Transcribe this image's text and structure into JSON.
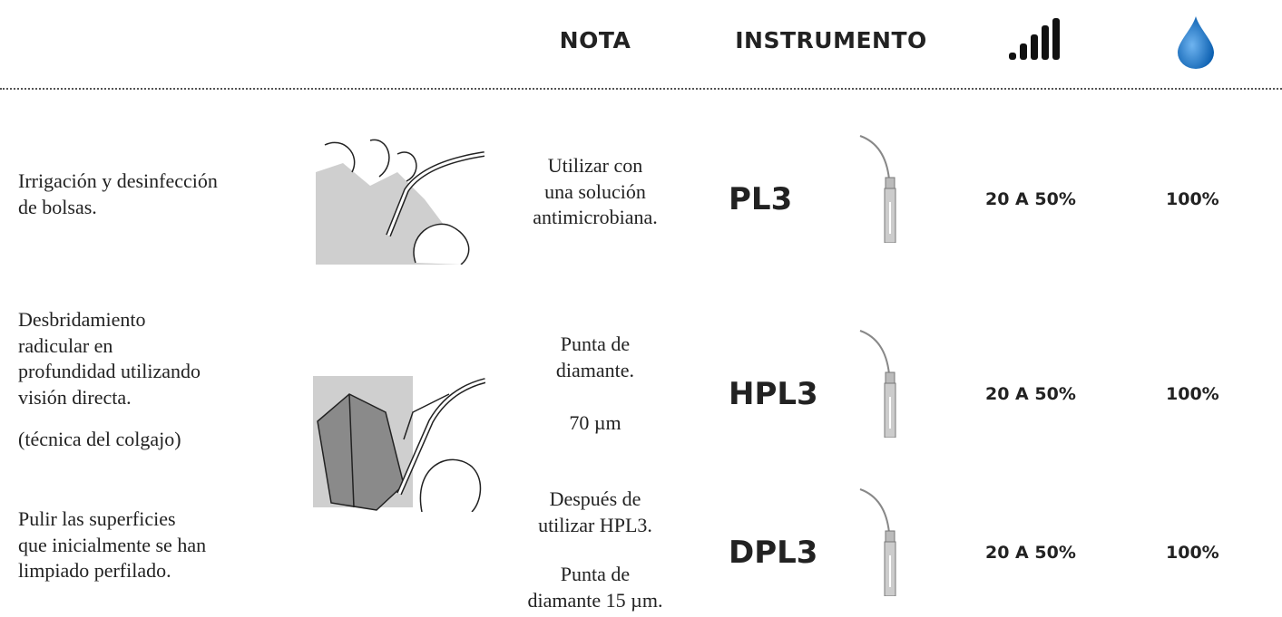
{
  "header": {
    "columns": [
      "NOTA",
      "INSTRUMENTO"
    ]
  },
  "rows": [
    {
      "description": [
        [
          "Irrigación y desinfección",
          "de bolsas."
        ]
      ],
      "note": [
        [
          "Utilizar con",
          "una solución",
          "antimicrobiana."
        ]
      ],
      "instrument": "PL3",
      "power": "20 A 50%",
      "water": "100%"
    },
    {
      "description": [
        [
          "Desbridamiento",
          "radicular en",
          "profundidad utilizando",
          "visión directa."
        ],
        [
          "(técnica del colgajo)"
        ]
      ],
      "note": [
        [
          "Punta de",
          "diamante."
        ],
        [
          "70 µm"
        ]
      ],
      "instrument": "HPL3",
      "power": "20 A 50%",
      "water": "100%"
    },
    {
      "description": [
        [
          "Pulir las superficies",
          "que inicialmente se han",
          "limpiado perfilado."
        ]
      ],
      "note": [
        [
          "Después de",
          "utilizar HPL3."
        ],
        [
          "Punta de",
          "diamante 15 µm."
        ]
      ],
      "instrument": "DPL3",
      "power": "20 A 50%",
      "water": "100%"
    }
  ]
}
